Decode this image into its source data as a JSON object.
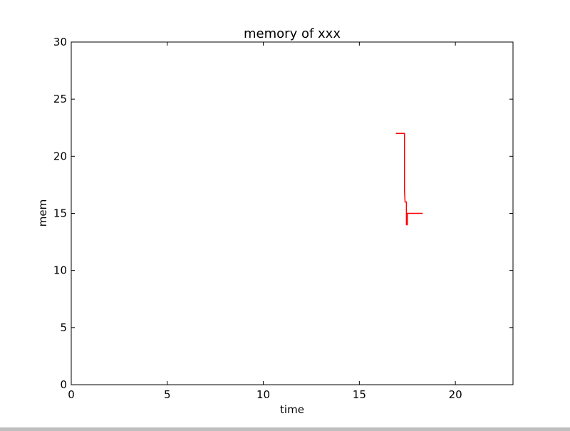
{
  "chart_data": {
    "type": "line",
    "title": "memory of xxx",
    "xlabel": "time",
    "ylabel": "mem",
    "xlim": [
      0,
      23
    ],
    "ylim": [
      0,
      30
    ],
    "xticks": [
      0,
      5,
      10,
      15,
      20
    ],
    "yticks": [
      0,
      5,
      10,
      15,
      20,
      25,
      30
    ],
    "xtick_labels": [
      "0",
      "5",
      "10",
      "15",
      "20"
    ],
    "ytick_labels": [
      "0",
      "5",
      "10",
      "15",
      "20",
      "25",
      "30"
    ],
    "grid": false,
    "series": [
      {
        "color": "#ff0000",
        "x": [
          16.9,
          17.35,
          17.35,
          17.38,
          17.45,
          17.45,
          17.5,
          17.5,
          18.3
        ],
        "y": [
          22,
          22,
          17,
          16,
          16,
          14,
          14,
          15,
          15
        ]
      }
    ]
  }
}
